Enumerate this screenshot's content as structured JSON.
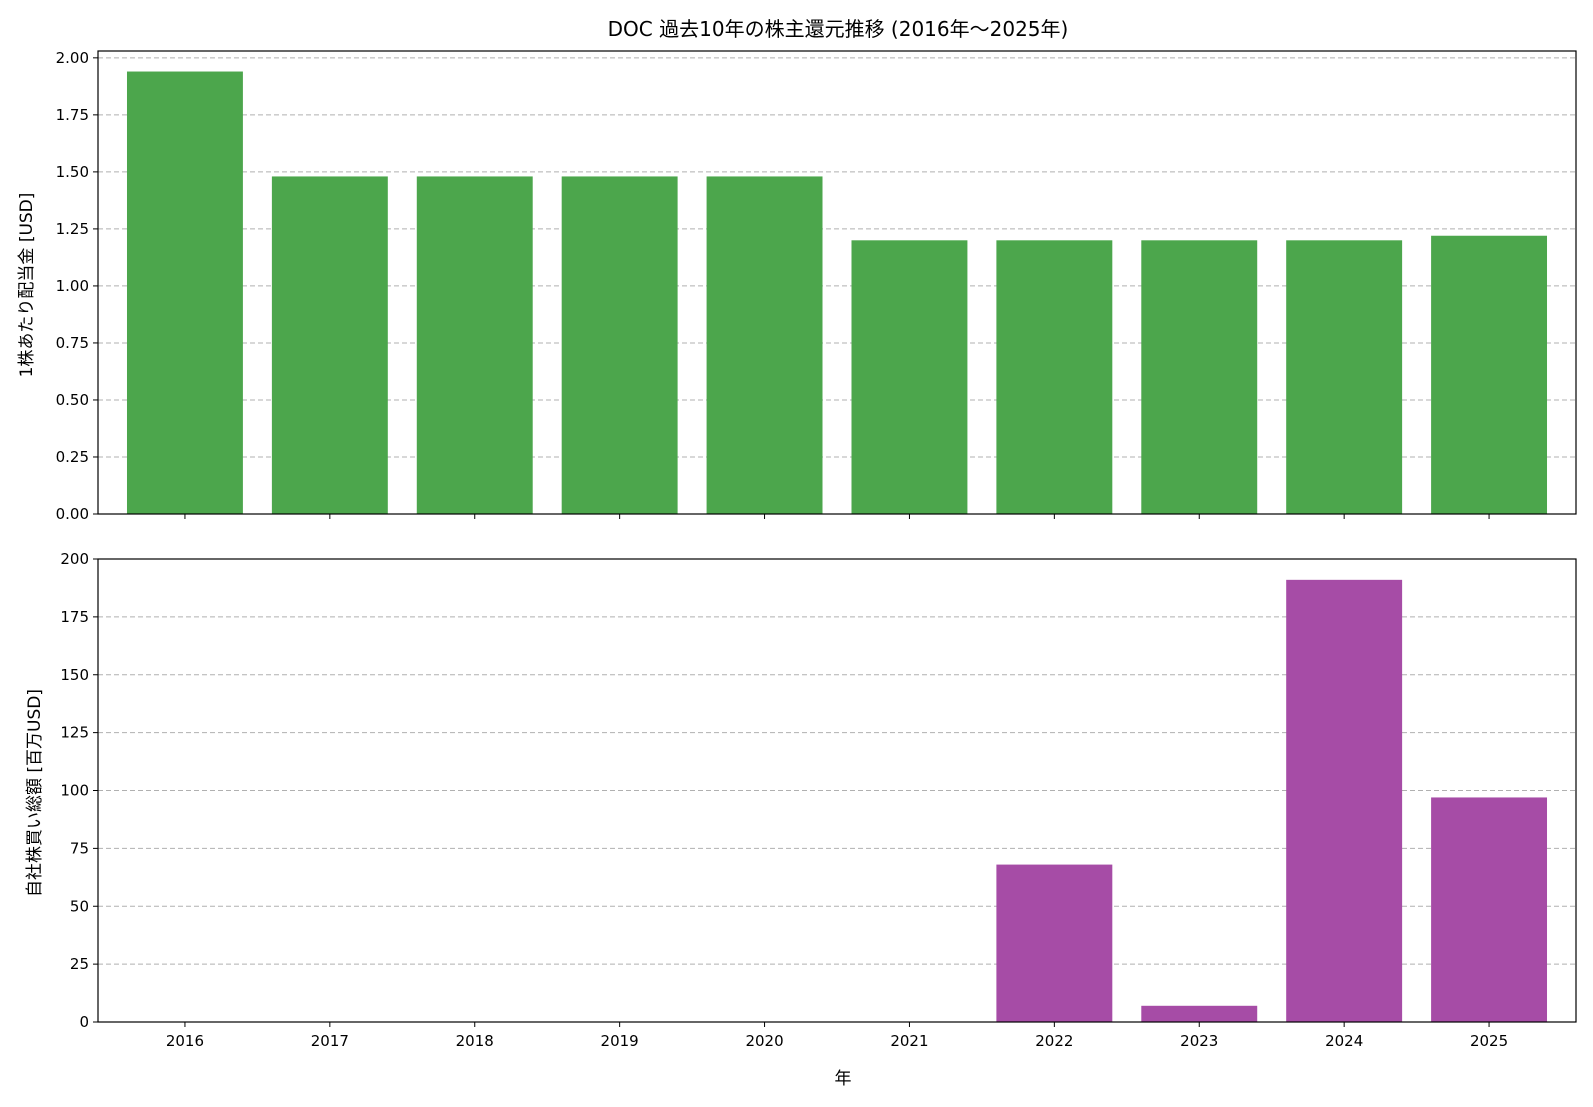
{
  "title": "DOC 過去10年の株主還元推移 (2016年～2025年)",
  "xlabel": "年",
  "colors": {
    "dividend_bar": "#4ca64c",
    "buyback_bar": "#a64ca6",
    "grid": "#b0b0b0",
    "axis": "#000000"
  },
  "chart_data": [
    {
      "type": "bar",
      "categories": [
        "2016",
        "2017",
        "2018",
        "2019",
        "2020",
        "2021",
        "2022",
        "2023",
        "2024",
        "2025"
      ],
      "values": [
        1.94,
        1.48,
        1.48,
        1.48,
        1.48,
        1.2,
        1.2,
        1.2,
        1.2,
        1.22
      ],
      "ylabel": "1株あたり配当金 [USD]",
      "ylim": [
        0,
        2.03
      ],
      "yticks": [
        "0.00",
        "0.25",
        "0.50",
        "0.75",
        "1.00",
        "1.25",
        "1.50",
        "1.75",
        "2.00"
      ],
      "grid": "y-dashed"
    },
    {
      "type": "bar",
      "categories": [
        "2016",
        "2017",
        "2018",
        "2019",
        "2020",
        "2021",
        "2022",
        "2023",
        "2024",
        "2025"
      ],
      "values": [
        0,
        0,
        0,
        0,
        0,
        0,
        68,
        7,
        191,
        97
      ],
      "ylabel": "自社株買い総額 [百万USD]",
      "ylim": [
        0,
        200
      ],
      "yticks": [
        "0",
        "25",
        "50",
        "75",
        "100",
        "125",
        "150",
        "175",
        "200"
      ],
      "grid": "y-dashed"
    }
  ]
}
